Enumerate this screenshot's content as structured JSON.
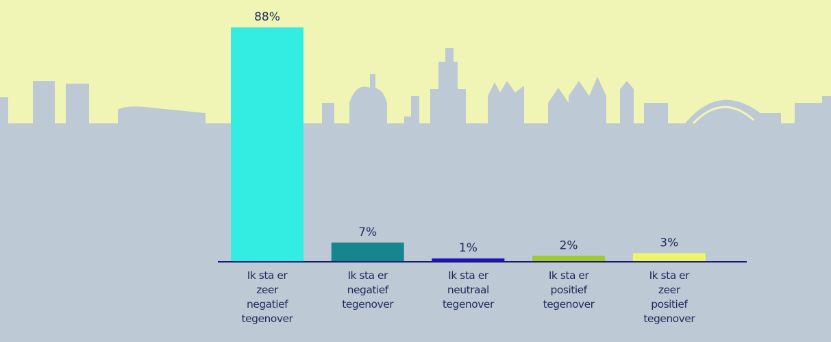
{
  "chart_data": {
    "type": "bar",
    "categories": [
      "Ik sta er\nzeer\nnegatief\ntegenover",
      "Ik sta er\nnegatief\ntegenover",
      "Ik sta er\nneutraal\ntegenover",
      "Ik sta er\npositief\ntegenover",
      "Ik sta er\nzeer\npositief\ntegenover"
    ],
    "values": [
      88,
      7,
      1,
      2,
      3
    ],
    "value_labels": [
      "88%",
      "7%",
      "1%",
      "2%",
      "3%"
    ],
    "colors": [
      "#33ede2",
      "#15858e",
      "#1e12c9",
      "#9ccb2a",
      "#eef56a"
    ]
  }
}
